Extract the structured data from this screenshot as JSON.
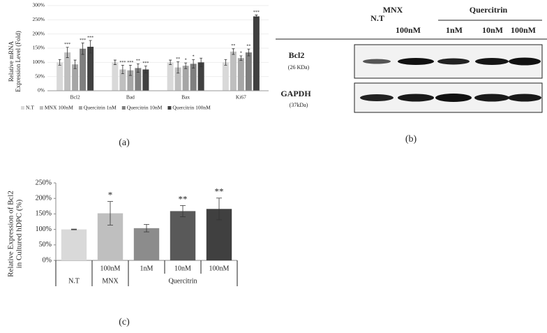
{
  "chart_data": [
    {
      "type": "bar",
      "panel_label": "(a)",
      "ylabel_lines": [
        "Relative mRNA",
        "Expression Level (Fold)"
      ],
      "categories": [
        "Bcl2",
        "Bad",
        "Bax",
        "Ki67"
      ],
      "series": [
        {
          "name": "N.T",
          "color": "#d9d9d9",
          "values": [
            100,
            100,
            100,
            100
          ],
          "errors": [
            10,
            8,
            8,
            10
          ],
          "annotations": [
            null,
            null,
            null,
            null
          ]
        },
        {
          "name": "MNX 100nM",
          "color": "#bfbfbf",
          "values": [
            135,
            75,
            82,
            138
          ],
          "errors": [
            18,
            15,
            20,
            10
          ],
          "annotations": [
            "***",
            "***",
            "**",
            "**"
          ]
        },
        {
          "name": "Quercitrin 1nM",
          "color": "#a6a6a6",
          "values": [
            93,
            72,
            88,
            115
          ],
          "errors": [
            15,
            18,
            10,
            8
          ],
          "annotations": [
            null,
            "***",
            "*",
            "*"
          ]
        },
        {
          "name": "Quercitrin 10nM",
          "color": "#7f7f7f",
          "values": [
            148,
            80,
            95,
            135
          ],
          "errors": [
            20,
            15,
            15,
            12
          ],
          "annotations": [
            "***",
            "**",
            "*",
            "**"
          ]
        },
        {
          "name": "Quercitrin 100nM",
          "color": "#404040",
          "values": [
            155,
            75,
            100,
            262
          ],
          "errors": [
            22,
            12,
            15,
            5
          ],
          "annotations": [
            "***",
            "***",
            null,
            "***"
          ]
        }
      ],
      "ylim": [
        0,
        300
      ],
      "yticks": [
        {
          "value": 0,
          "label": "0%"
        },
        {
          "value": 50,
          "label": "50%"
        },
        {
          "value": 100,
          "label": "100%"
        },
        {
          "value": 150,
          "label": "150%"
        },
        {
          "value": 200,
          "label": "200%"
        },
        {
          "value": 250,
          "label": "250%"
        },
        {
          "value": 300,
          "label": "300%"
        }
      ],
      "grid": true,
      "legend": "bottom"
    },
    {
      "type": "bar",
      "panel_label": "(c)",
      "ylabel_lines": [
        "Relative Expression of Bcl2",
        "in Cultured hDPC (%)"
      ],
      "categories": [
        null,
        "100nM",
        "1nM",
        "10nM",
        "100nM"
      ],
      "groups": [
        {
          "label": "N.T",
          "span": 1
        },
        {
          "label": "MNX",
          "span": 1
        },
        {
          "label": "Quercitrin",
          "span": 3
        }
      ],
      "values": [
        100,
        152,
        104,
        159,
        166
      ],
      "errors": [
        1,
        38,
        12,
        18,
        35
      ],
      "colors": [
        "#d9d9d9",
        "#bfbfbf",
        "#8c8c8c",
        "#595959",
        "#404040"
      ],
      "annotations": [
        null,
        "*",
        null,
        "**",
        "**"
      ],
      "ylim": [
        0,
        250
      ],
      "yticks": [
        {
          "value": 0,
          "label": "0%"
        },
        {
          "value": 50,
          "label": "50%"
        },
        {
          "value": 100,
          "label": "100%"
        },
        {
          "value": 150,
          "label": "150%"
        },
        {
          "value": 200,
          "label": "200%"
        },
        {
          "value": 250,
          "label": "250%"
        }
      ],
      "grid": false
    }
  ],
  "blot": {
    "panel_label": "(b)",
    "nt": "N.T",
    "mnx": "MNX",
    "mnx_dose": "100nM",
    "quercitrin": "Quercitrin",
    "doses": [
      "1nM",
      "10nM",
      "100nM"
    ],
    "rows": [
      {
        "protein": "Bcl2",
        "size": "(26 KDa)"
      },
      {
        "protein": "GAPDH",
        "size": "(37kDa)"
      }
    ]
  }
}
